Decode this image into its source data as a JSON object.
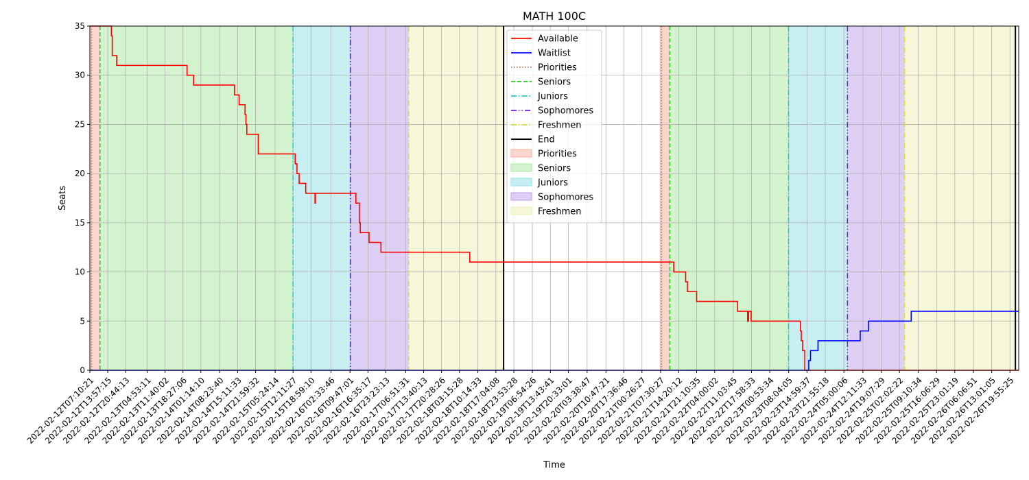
{
  "chart_data": {
    "type": "line",
    "title": "MATH 100C",
    "xlabel": "Time",
    "ylabel": "Seats",
    "ylim": [
      0,
      35
    ],
    "yticks": [
      0,
      5,
      10,
      15,
      20,
      25,
      30,
      35
    ],
    "xlim": [
      "2022-02-12T07:10:21",
      "2022-02-26T23:15:00"
    ],
    "grid": true,
    "legend_position": "upper-middle",
    "xtick_labels": [
      "2022-02-12T07:10:21",
      "2022-02-12T13:57:15",
      "2022-02-12T20:44:13",
      "2022-02-13T04:53:11",
      "2022-02-13T11:40:02",
      "2022-02-13T18:27:06",
      "2022-02-14T01:14:10",
      "2022-02-14T08:23:40",
      "2022-02-14T15:11:33",
      "2022-02-14T21:59:32",
      "2022-02-15T05:24:14",
      "2022-02-15T12:11:27",
      "2022-02-15T18:59:10",
      "2022-02-16T02:33:46",
      "2022-02-16T09:47:01",
      "2022-02-16T16:35:17",
      "2022-02-16T23:23:13",
      "2022-02-17T06:51:31",
      "2022-02-17T13:40:13",
      "2022-02-17T20:28:26",
      "2022-02-18T03:15:28",
      "2022-02-18T10:14:33",
      "2022-02-18T17:04:08",
      "2022-02-18T23:53:28",
      "2022-02-19T06:54:26",
      "2022-02-19T13:43:41",
      "2022-02-19T20:33:01",
      "2022-02-20T03:38:47",
      "2022-02-20T10:47:21",
      "2022-02-20T17:36:46",
      "2022-02-21T00:26:27",
      "2022-02-21T07:30:27",
      "2022-02-21T14:20:12",
      "2022-02-21T21:10:35",
      "2022-02-22T04:00:02",
      "2022-02-22T11:03:45",
      "2022-02-22T17:58:33",
      "2022-02-23T00:53:34",
      "2022-02-23T08:04:05",
      "2022-02-23T14:59:37",
      "2022-02-23T21:55:18",
      "2022-02-24T05:00:06",
      "2022-02-24T12:11:33",
      "2022-02-24T19:07:29",
      "2022-02-25T02:02:22",
      "2022-02-25T09:10:34",
      "2022-02-25T16:06:29",
      "2022-02-25T23:01:19",
      "2022-02-26T06:06:51",
      "2022-02-26T13:01:05",
      "2022-02-26T19:55:25"
    ],
    "shaded_regions": [
      {
        "name": "Priorities",
        "color": "#f4b0a0",
        "start": "2022-02-12T07:10:21",
        "end": "2022-02-12T11:00:00"
      },
      {
        "name": "Seniors",
        "color": "#a8e8a0",
        "start": "2022-02-12T11:00:00",
        "end": "2022-02-15T12:10:00"
      },
      {
        "name": "Juniors",
        "color": "#90e0e6",
        "start": "2022-02-15T12:10:00",
        "end": "2022-02-16T10:00:00"
      },
      {
        "name": "Sophomores",
        "color": "#bca0e8",
        "start": "2022-02-16T10:00:00",
        "end": "2022-02-17T08:00:00"
      },
      {
        "name": "Freshmen",
        "color": "#eef0b4",
        "start": "2022-02-17T08:00:00",
        "end": "2022-02-18T20:00:00"
      },
      {
        "name": "Priorities",
        "color": "#f4b0a0",
        "start": "2022-02-21T07:15:00",
        "end": "2022-02-21T11:00:00"
      },
      {
        "name": "Seniors",
        "color": "#a8e8a0",
        "start": "2022-02-21T11:00:00",
        "end": "2022-02-23T08:00:00"
      },
      {
        "name": "Juniors",
        "color": "#90e0e6",
        "start": "2022-02-23T08:00:00",
        "end": "2022-02-24T06:20:00"
      },
      {
        "name": "Sophomores",
        "color": "#bca0e8",
        "start": "2022-02-24T06:20:00",
        "end": "2022-02-25T04:00:00"
      },
      {
        "name": "Freshmen",
        "color": "#eef0b4",
        "start": "2022-02-25T04:00:00",
        "end": "2022-02-26T22:00:00"
      }
    ],
    "vertical_lines": [
      {
        "name": "Priorities",
        "color": "#e8664a",
        "dash": "dotted",
        "x": "2022-02-12T07:50:00"
      },
      {
        "name": "Seniors",
        "color": "#22cc22",
        "dash": "dashed",
        "x": "2022-02-12T11:00:00"
      },
      {
        "name": "Juniors",
        "color": "#22cccc",
        "dash": "dashdot",
        "x": "2022-02-15T12:10:00"
      },
      {
        "name": "Sophomores",
        "color": "#6622dd",
        "dash": "dashdotdot",
        "x": "2022-02-16T10:00:00"
      },
      {
        "name": "Freshmen",
        "color": "#d8d840",
        "dash": "dashdot",
        "x": "2022-02-17T08:00:00"
      },
      {
        "name": "End",
        "color": "#000000",
        "dash": "solid",
        "x": "2022-02-18T20:00:00"
      },
      {
        "name": "Priorities",
        "color": "#e8664a",
        "dash": "dotted",
        "x": "2022-02-21T07:50:00"
      },
      {
        "name": "Seniors",
        "color": "#22cc22",
        "dash": "dashed",
        "x": "2022-02-21T11:00:00"
      },
      {
        "name": "Juniors",
        "color": "#22cccc",
        "dash": "dashdot",
        "x": "2022-02-23T08:00:00"
      },
      {
        "name": "Sophomores",
        "color": "#6622dd",
        "dash": "dashdotdot",
        "x": "2022-02-24T06:20:00"
      },
      {
        "name": "Freshmen",
        "color": "#d8d840",
        "dash": "dashdot",
        "x": "2022-02-25T04:00:00"
      },
      {
        "name": "End",
        "color": "#000000",
        "dash": "solid",
        "x": "2022-02-26T22:00:00"
      }
    ],
    "series": [
      {
        "name": "Available",
        "color": "#ff0000",
        "step": true,
        "points": [
          [
            "2022-02-12T07:10:21",
            35
          ],
          [
            "2022-02-12T15:00:00",
            35
          ],
          [
            "2022-02-12T15:20:00",
            34
          ],
          [
            "2022-02-12T15:40:00",
            32
          ],
          [
            "2022-02-12T17:20:00",
            31
          ],
          [
            "2022-02-13T20:00:00",
            30
          ],
          [
            "2022-02-13T22:30:00",
            29
          ],
          [
            "2022-02-14T14:00:00",
            28
          ],
          [
            "2022-02-14T15:45:00",
            27
          ],
          [
            "2022-02-14T18:00:00",
            26
          ],
          [
            "2022-02-14T18:20:00",
            25
          ],
          [
            "2022-02-14T18:40:00",
            24
          ],
          [
            "2022-02-14T23:00:00",
            22
          ],
          [
            "2022-02-15T13:00:00",
            21
          ],
          [
            "2022-02-15T13:40:00",
            20
          ],
          [
            "2022-02-15T14:30:00",
            19
          ],
          [
            "2022-02-15T17:00:00",
            18
          ],
          [
            "2022-02-15T20:30:00",
            17
          ],
          [
            "2022-02-15T20:40:00",
            18
          ],
          [
            "2022-02-16T12:00:00",
            17
          ],
          [
            "2022-02-16T13:20:00",
            15
          ],
          [
            "2022-02-16T13:40:00",
            14
          ],
          [
            "2022-02-16T17:00:00",
            13
          ],
          [
            "2022-02-16T21:30:00",
            12
          ],
          [
            "2022-02-18T07:10:00",
            11
          ],
          [
            "2022-02-21T12:30:00",
            10
          ],
          [
            "2022-02-21T17:00:00",
            9
          ],
          [
            "2022-02-21T17:40:00",
            8
          ],
          [
            "2022-02-21T21:10:00",
            7
          ],
          [
            "2022-02-22T12:40:00",
            6
          ],
          [
            "2022-02-22T16:30:00",
            5
          ],
          [
            "2022-02-22T16:50:00",
            6
          ],
          [
            "2022-02-22T17:50:00",
            5
          ],
          [
            "2022-02-23T12:30:00",
            4
          ],
          [
            "2022-02-23T12:50:00",
            3
          ],
          [
            "2022-02-23T13:20:00",
            2
          ],
          [
            "2022-02-23T14:10:00",
            0
          ],
          [
            "2022-02-26T23:15:00",
            0
          ]
        ]
      },
      {
        "name": "Waitlist",
        "color": "#0000ff",
        "step": true,
        "points": [
          [
            "2022-02-12T07:10:21",
            0
          ],
          [
            "2022-02-23T15:40:00",
            1
          ],
          [
            "2022-02-23T16:20:00",
            2
          ],
          [
            "2022-02-23T19:10:00",
            3
          ],
          [
            "2022-02-24T11:10:00",
            4
          ],
          [
            "2022-02-24T14:20:00",
            5
          ],
          [
            "2022-02-25T06:30:00",
            6
          ],
          [
            "2022-02-26T23:15:00",
            6
          ]
        ]
      }
    ],
    "legend": [
      {
        "label": "Available",
        "kind": "line",
        "color": "#ff0000",
        "dash": "solid"
      },
      {
        "label": "Waitlist",
        "kind": "line",
        "color": "#0000ff",
        "dash": "solid"
      },
      {
        "label": "Priorities",
        "kind": "line",
        "color": "#e8664a",
        "dash": "dotted"
      },
      {
        "label": "Seniors",
        "kind": "line",
        "color": "#22cc22",
        "dash": "dashed"
      },
      {
        "label": "Juniors",
        "kind": "line",
        "color": "#22cccc",
        "dash": "dashdot"
      },
      {
        "label": "Sophomores",
        "kind": "line",
        "color": "#6622dd",
        "dash": "dashdotdot"
      },
      {
        "label": "Freshmen",
        "kind": "line",
        "color": "#d8d840",
        "dash": "dashdot"
      },
      {
        "label": "End",
        "kind": "line",
        "color": "#000000",
        "dash": "solid"
      },
      {
        "label": "Priorities",
        "kind": "patch",
        "color": "#f4b0a0"
      },
      {
        "label": "Seniors",
        "kind": "patch",
        "color": "#a8e8a0"
      },
      {
        "label": "Juniors",
        "kind": "patch",
        "color": "#90e0e6"
      },
      {
        "label": "Sophomores",
        "kind": "patch",
        "color": "#bca0e8"
      },
      {
        "label": "Freshmen",
        "kind": "patch",
        "color": "#eef0b4"
      }
    ]
  }
}
